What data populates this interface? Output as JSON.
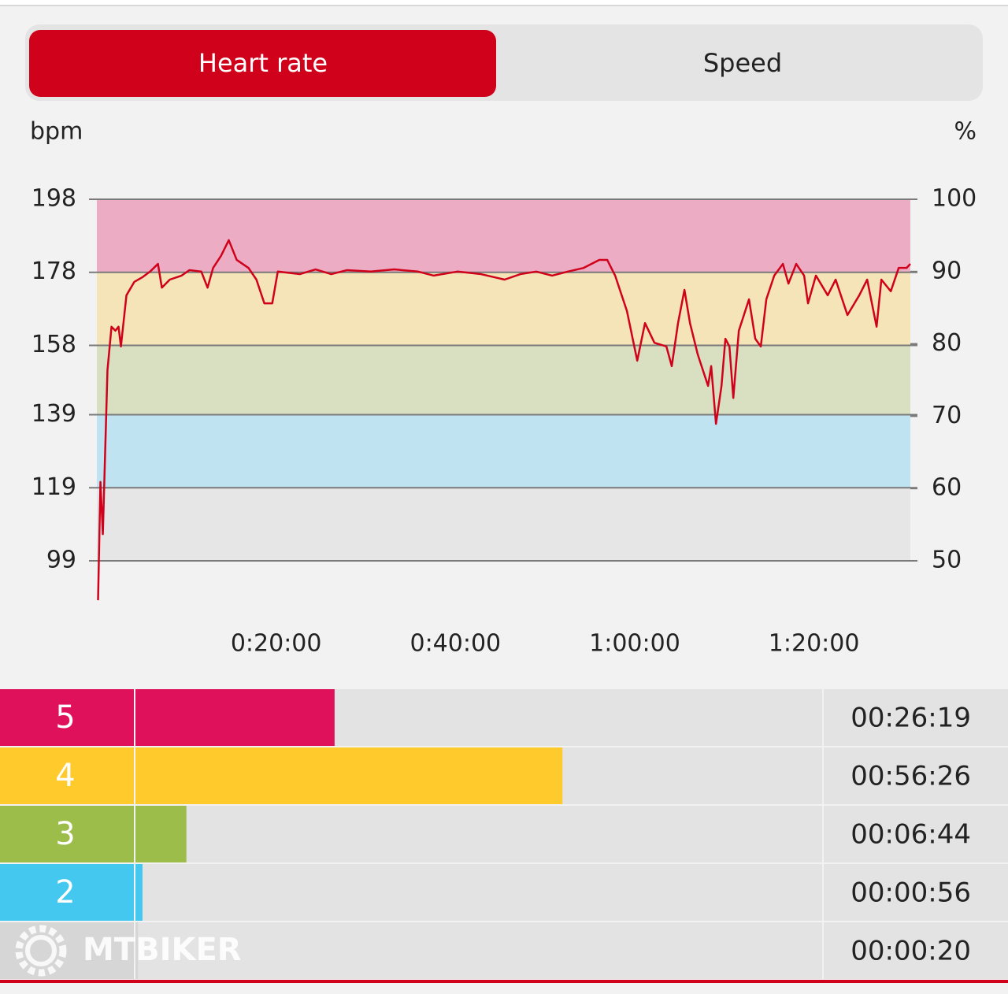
{
  "tabs": [
    "Heart rate",
    "Speed"
  ],
  "chart_data": {
    "type": "line",
    "y_label": "bpm",
    "y2_label": "%",
    "x": [
      8,
      24,
      40,
      71,
      98,
      124,
      145,
      161,
      198,
      251,
      303,
      356,
      409,
      435,
      488,
      567,
      620,
      699,
      741,
      778,
      831,
      883,
      936,
      1015,
      1068,
      1121,
      1174,
      1211,
      1358,
      1464,
      1569,
      1675,
      1833,
      1991,
      2149,
      2255,
      2413,
      2571,
      2729,
      2835,
      2941,
      3047,
      3152,
      3258,
      3363,
      3416,
      3469,
      3548,
      3617,
      3669,
      3732,
      3812,
      3848,
      3890,
      3933,
      3970,
      4022,
      4091,
      4112,
      4144,
      4181,
      4207,
      4234,
      4260,
      4297,
      4365,
      4407,
      4444,
      4481,
      4534,
      4592,
      4629,
      4681,
      4734,
      4760,
      4813,
      4892,
      4945,
      5024,
      5103,
      5156,
      5219,
      5251,
      5314,
      5367,
      5420,
      5445
    ],
    "series": [
      {
        "color": "#d0021b",
        "values": [
          88.2,
          120.6,
          106.3,
          151.2,
          163.1,
          162,
          163.1,
          157.7,
          171.7,
          175.4,
          176.6,
          178.2,
          180.3,
          173.8,
          176,
          177.1,
          178.6,
          178.2,
          173.8,
          179.2,
          182.5,
          186.8,
          181.4,
          179.2,
          176,
          169.5,
          169.5,
          178.2,
          177.5,
          178.8,
          177.5,
          178.6,
          178.2,
          178.8,
          178.2,
          177.1,
          178.2,
          177.5,
          176,
          177.5,
          178.2,
          177.1,
          178.2,
          179.2,
          181.4,
          181.4,
          177.1,
          167.4,
          153.8,
          164.1,
          158.7,
          157.7,
          152.3,
          164.1,
          173.2,
          164.1,
          155.5,
          146.9,
          152.3,
          136.5,
          146.9,
          159.8,
          157.7,
          143.6,
          162,
          170.6,
          159.8,
          157.7,
          170.6,
          177.1,
          180.3,
          174.9,
          180.3,
          177.1,
          169.5,
          177.1,
          171.7,
          176,
          166.3,
          171.7,
          176,
          163.1,
          176,
          172.8,
          179.2,
          179.2,
          180.3
        ]
      }
    ],
    "xlim": [
      0,
      5445
    ],
    "xticks": [
      {
        "value": 1200,
        "label": "0:20:00"
      },
      {
        "value": 2400,
        "label": "0:40:00"
      },
      {
        "value": 3600,
        "label": "1:00:00"
      },
      {
        "value": 4800,
        "label": "1:20:00"
      }
    ],
    "ylim": [
      99,
      198
    ],
    "yticks": [
      99,
      119,
      139,
      158,
      178,
      198
    ],
    "y2lim": [
      50,
      100
    ],
    "y2ticks": [
      50,
      60,
      70,
      80,
      90,
      100
    ],
    "band_colors": [
      "#e6e6e6",
      "#bfe3f1",
      "#d9e0c1",
      "#f5e4b8",
      "#ecadc4"
    ],
    "grid": true
  },
  "zones": {
    "names": [
      "5",
      "4",
      "3",
      "2",
      null
    ],
    "values": [
      1579,
      3386,
      404,
      56,
      20
    ],
    "value_labels": [
      "00:26:19",
      "00:56:26",
      "00:06:44",
      "00:00:56",
      "00:00:20"
    ],
    "colors": [
      "#e0115b",
      "#ffca2b",
      "#9dbd4a",
      "#45c8ef",
      "#d6d6d6"
    ],
    "xlim": [
      0,
      5445
    ]
  },
  "watermark": "MTBIKER"
}
